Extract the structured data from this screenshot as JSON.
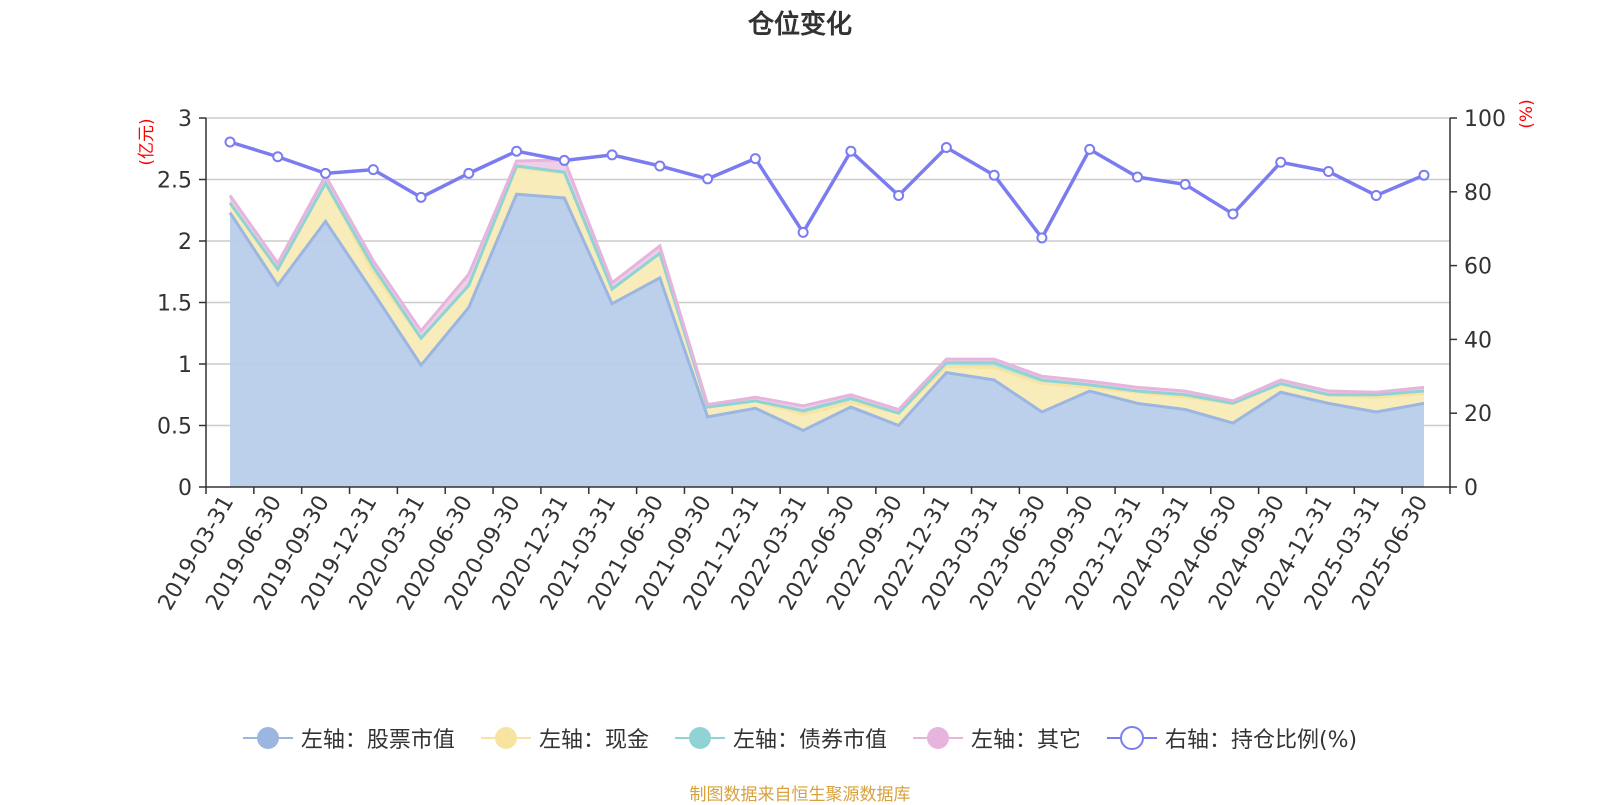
{
  "chart_data": {
    "type": "area",
    "title": "仓位变化",
    "left_axis_unit": "(亿元)",
    "right_axis_unit": "(%)",
    "left_ylim": [
      0,
      3
    ],
    "left_yticks": [
      "0",
      "0.5",
      "1",
      "1.5",
      "2",
      "2.5",
      "3"
    ],
    "right_ylim": [
      0,
      100
    ],
    "right_yticks": [
      "0",
      "20",
      "40",
      "60",
      "80",
      "100"
    ],
    "grid": true,
    "legend_position": "bottom",
    "categories": [
      "2019-03-31",
      "2019-06-30",
      "2019-09-30",
      "2019-12-31",
      "2020-03-31",
      "2020-06-30",
      "2020-09-30",
      "2020-12-31",
      "2021-03-31",
      "2021-06-30",
      "2021-09-30",
      "2021-12-31",
      "2022-03-31",
      "2022-06-30",
      "2022-09-30",
      "2022-12-31",
      "2023-03-31",
      "2023-06-30",
      "2023-09-30",
      "2023-12-31",
      "2024-03-31",
      "2024-06-30",
      "2024-09-30",
      "2024-12-31",
      "2025-03-31",
      "2025-06-30"
    ],
    "stacked_series": [
      {
        "name": "左轴：股票市值",
        "axis": "left",
        "color": "#9bb6e0",
        "fill": "#b8cdea",
        "values": [
          2.23,
          1.64,
          2.16,
          1.58,
          0.99,
          1.46,
          2.38,
          2.35,
          1.49,
          1.7,
          0.57,
          0.64,
          0.46,
          0.65,
          0.5,
          0.93,
          0.87,
          0.61,
          0.78,
          0.68,
          0.63,
          0.52,
          0.77,
          0.68,
          0.61,
          0.68
        ]
      },
      {
        "name": "左轴：现金",
        "axis": "left",
        "color": "#f7e4a0",
        "fill": "#f9ebb7",
        "values": [
          0.08,
          0.13,
          0.31,
          0.16,
          0.22,
          0.18,
          0.22,
          0.2,
          0.12,
          0.2,
          0.08,
          0.06,
          0.13,
          0.04,
          0.1,
          0.05,
          0.1,
          0.23,
          0.03,
          0.09,
          0.1,
          0.16,
          0.07,
          0.07,
          0.12,
          0.08
        ]
      },
      {
        "name": "左轴：债券市值",
        "axis": "left",
        "color": "#8fd3d4",
        "fill": "#b3e2e2",
        "values": [
          0.0,
          0.0,
          0.0,
          0.05,
          0.0,
          0.0,
          0.01,
          0.01,
          0.0,
          0.0,
          0.0,
          0.0,
          0.03,
          0.03,
          0.0,
          0.03,
          0.04,
          0.03,
          0.02,
          0.01,
          0.02,
          0.0,
          0.0,
          0.0,
          0.02,
          0.02
        ]
      },
      {
        "name": "左轴：其它",
        "axis": "left",
        "color": "#e6b4dc",
        "fill": "#eecbe7",
        "values": [
          0.06,
          0.05,
          0.06,
          0.05,
          0.06,
          0.09,
          0.04,
          0.1,
          0.05,
          0.06,
          0.02,
          0.03,
          0.04,
          0.03,
          0.03,
          0.03,
          0.03,
          0.03,
          0.03,
          0.03,
          0.03,
          0.02,
          0.03,
          0.03,
          0.02,
          0.03
        ]
      }
    ],
    "line_series": {
      "name": "右轴：持仓比例(%)",
      "axis": "right",
      "color": "#7b7cf0",
      "values": [
        93.5,
        89.5,
        85,
        86,
        78.5,
        85,
        91,
        88.5,
        90,
        87,
        83.5,
        89,
        69,
        91,
        79,
        92,
        84.5,
        67.5,
        91.5,
        84,
        82,
        74,
        88,
        85.5,
        79,
        84.5
      ]
    }
  },
  "footer": {
    "source_note": "制图数据来自恒生聚源数据库"
  }
}
